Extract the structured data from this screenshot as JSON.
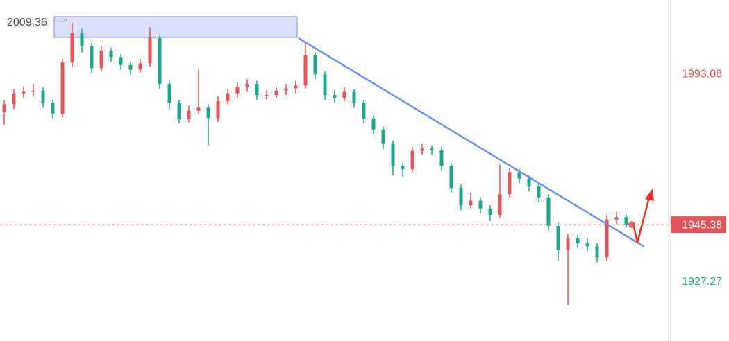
{
  "chart_data": {
    "type": "candlestick",
    "ylim": [
      1908.5,
      2016.6
    ],
    "yticks": [
      1993.08,
      1927.27
    ],
    "up_color": "#e2535a",
    "down_color": "#1fa58e",
    "last_price": 1945.38,
    "high_label": 2009.36,
    "open": [
      1981,
      1983.6,
      1987,
      1987.5,
      1987.8,
      1984,
      1980.5,
      1996.8,
      2006,
      2002,
      1995,
      2000.5,
      1998.5,
      1996,
      1994.5,
      1996.5,
      2004.5,
      1990,
      1984,
      1978.8,
      1981.5,
      1982.5,
      1979.2,
      1984.5,
      1987,
      1989,
      1990,
      1986.5,
      1986.5,
      1987.8,
      1988.6,
      1989.5,
      1999,
      1993,
      1986.5,
      1985.5,
      1987.5,
      1984,
      1979,
      1975.5,
      1971,
      1964,
      1963,
      1968.8,
      1969.5,
      1969,
      1964,
      1957,
      1951.5,
      1953,
      1950.5,
      1948.5,
      1955,
      1962,
      1960,
      1957.5,
      1954,
      1945,
      1937.5,
      1941,
      1939.5,
      1938.5,
      1935,
      1947,
      1947.8
    ],
    "high": [
      1985,
      1988.5,
      1989,
      1990,
      1989,
      1985,
      1998,
      2009.36,
      2007.5,
      2003,
      2002,
      2001.5,
      1999.5,
      1997,
      1998,
      2008,
      2005.5,
      1991,
      1985,
      1983,
      1994.6,
      1983.5,
      1986,
      1988.5,
      1990.5,
      1991.5,
      1991,
      1988,
      1989,
      1990,
      1991,
      2003.4,
      2000,
      1994,
      1988,
      1989,
      1988.5,
      1985,
      1980,
      1976.5,
      1972,
      1965,
      1970,
      1971,
      1970.5,
      1970,
      1965,
      1958,
      1955.5,
      1954,
      1951.5,
      1964.5,
      1963.5,
      1963,
      1961,
      1958.5,
      1955,
      1946,
      1942.5,
      1942,
      1941,
      1939.5,
      1948.5,
      1949.5,
      1948.5
    ],
    "low": [
      1977,
      1982,
      1985.5,
      1986,
      1982.5,
      1979,
      1979.5,
      1995.5,
      2000,
      1993.5,
      1994,
      1997,
      1994.5,
      1993,
      1993.5,
      1995.5,
      1988.5,
      1982,
      1977.5,
      1977.8,
      1980.5,
      1970.5,
      1978,
      1983.5,
      1985.5,
      1987.5,
      1985,
      1985,
      1985.5,
      1986.5,
      1987,
      1988.5,
      1991.5,
      1985,
      1984,
      1984.5,
      1982.5,
      1977.5,
      1974,
      1969.5,
      1961,
      1960.5,
      1962,
      1967.5,
      1967.5,
      1962.5,
      1955.5,
      1950,
      1950.5,
      1949,
      1946.5,
      1947.5,
      1954,
      1958.5,
      1956,
      1952.5,
      1943.5,
      1934,
      1919.9,
      1938,
      1937,
      1933.5,
      1934,
      1945.5,
      1944.5
    ],
    "close": [
      1983.6,
      1987,
      1987.5,
      1987.8,
      1984,
      1980.5,
      1996.8,
      2006,
      2002,
      1995,
      2000.5,
      1998.5,
      1996,
      1994.5,
      1996.5,
      2004.5,
      1990,
      1984,
      1978.8,
      1981.5,
      1982.5,
      1979.2,
      1984.5,
      1987,
      1989,
      1990,
      1986.5,
      1986.5,
      1987.8,
      1988.6,
      1989.5,
      1999,
      1993,
      1986.5,
      1985.5,
      1987.5,
      1984,
      1979,
      1975.5,
      1971,
      1964,
      1963,
      1968.8,
      1969.5,
      1969,
      1964,
      1957,
      1951.5,
      1953,
      1950.5,
      1948.5,
      1955,
      1962,
      1960,
      1957.5,
      1954,
      1945,
      1937.5,
      1941,
      1939.5,
      1938.5,
      1935,
      1947,
      1947.8,
      1945.38
    ]
  }
}
